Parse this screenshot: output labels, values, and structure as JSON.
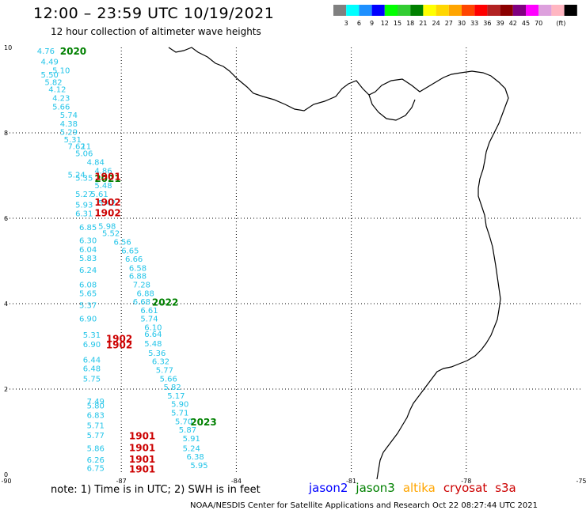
{
  "header": {
    "title": "12:00 – 23:59 UTC 10/19/2021",
    "subtitle": "12 hour collection of altimeter wave heights"
  },
  "colorbar": {
    "colors": [
      "#808080",
      "#00ffff",
      "#1e90ff",
      "#0000ff",
      "#00ff00",
      "#32cd32",
      "#008000",
      "#ffff00",
      "#ffd700",
      "#ffa500",
      "#ff4500",
      "#ff0000",
      "#b22222",
      "#8b0000",
      "#800080",
      "#ff00ff",
      "#dda0dd",
      "#ffb6c1",
      "#000000"
    ],
    "labels": [
      "3",
      "6",
      "9",
      "12",
      "15",
      "18",
      "21",
      "24",
      "27",
      "30",
      "33",
      "36",
      "39",
      "42",
      "45",
      "70",
      "(ft)"
    ]
  },
  "map": {
    "lon_range": [
      -90,
      -75
    ],
    "lat_range": [
      0,
      10
    ],
    "lon_ticks": [
      "-90",
      "-87",
      "-84",
      "-81",
      "-78",
      "-75"
    ],
    "lat_ticks": [
      "0",
      "2",
      "4",
      "6",
      "8",
      "10"
    ],
    "tick_label_color": "#000000"
  },
  "track_labels": [
    {
      "text": "2020",
      "lon": -88.6,
      "lat": 9.83,
      "color": "#008000"
    },
    {
      "text": "2021",
      "lon": -87.7,
      "lat": 6.85,
      "color": "#008000"
    },
    {
      "text": "1901",
      "lon": -87.7,
      "lat": 6.9,
      "color": "#cc0000"
    },
    {
      "text": "1902",
      "lon": -87.7,
      "lat": 6.3,
      "color": "#cc0000"
    },
    {
      "text": "1902",
      "lon": -87.7,
      "lat": 6.05,
      "color": "#cc0000"
    },
    {
      "text": "2022",
      "lon": -86.2,
      "lat": 3.95,
      "color": "#008000"
    },
    {
      "text": "1902",
      "lon": -87.4,
      "lat": 3.1,
      "color": "#cc0000"
    },
    {
      "text": "1902",
      "lon": -87.4,
      "lat": 2.95,
      "color": "#cc0000"
    },
    {
      "text": "2023",
      "lon": -85.2,
      "lat": 1.15,
      "color": "#008000"
    },
    {
      "text": "1901",
      "lon": -86.8,
      "lat": 0.82,
      "color": "#cc0000"
    },
    {
      "text": "1901",
      "lon": -86.8,
      "lat": 0.55,
      "color": "#cc0000"
    },
    {
      "text": "1901",
      "lon": -86.8,
      "lat": 0.28,
      "color": "#cc0000"
    },
    {
      "text": "1901",
      "lon": -86.8,
      "lat": 0.05,
      "color": "#cc0000"
    }
  ],
  "swh_points": [
    {
      "v": "4.76",
      "lon": -89.2,
      "lat": 9.85
    },
    {
      "v": "4.49",
      "lon": -89.1,
      "lat": 9.6
    },
    {
      "v": "5.10",
      "lon": -88.8,
      "lat": 9.4
    },
    {
      "v": "5.50",
      "lon": -89.1,
      "lat": 9.3
    },
    {
      "v": "5.82",
      "lon": -89.0,
      "lat": 9.12
    },
    {
      "v": "4.12",
      "lon": -88.9,
      "lat": 8.95
    },
    {
      "v": "4.23",
      "lon": -88.8,
      "lat": 8.75
    },
    {
      "v": "5.66",
      "lon": -88.8,
      "lat": 8.55
    },
    {
      "v": "5.74",
      "lon": -88.6,
      "lat": 8.35
    },
    {
      "v": "4.38",
      "lon": -88.6,
      "lat": 8.15
    },
    {
      "v": "5.29",
      "lon": -88.6,
      "lat": 7.95
    },
    {
      "v": "5.31",
      "lon": -88.5,
      "lat": 7.78
    },
    {
      "v": "7.62",
      "lon": -88.4,
      "lat": 7.62
    },
    {
      "v": "11",
      "lon": -88.05,
      "lat": 7.62
    },
    {
      "v": "5.06",
      "lon": -88.2,
      "lat": 7.45
    },
    {
      "v": "4.84",
      "lon": -87.9,
      "lat": 7.25
    },
    {
      "v": "4.86",
      "lon": -87.7,
      "lat": 7.05
    },
    {
      "v": "5.24",
      "lon": -88.4,
      "lat": 6.95
    },
    {
      "v": "5.35",
      "lon": -88.2,
      "lat": 6.88
    },
    {
      "v": "5.48",
      "lon": -87.7,
      "lat": 6.7
    },
    {
      "v": "5.27",
      "lon": -88.2,
      "lat": 6.5
    },
    {
      "v": "5.61",
      "lon": -87.8,
      "lat": 6.5
    },
    {
      "v": "5.42",
      "lon": -87.6,
      "lat": 6.3
    },
    {
      "v": "5.93",
      "lon": -88.2,
      "lat": 6.25
    },
    {
      "v": "6.31",
      "lon": -88.2,
      "lat": 6.05
    },
    {
      "v": "5.98",
      "lon": -87.6,
      "lat": 5.75
    },
    {
      "v": "6.85",
      "lon": -88.1,
      "lat": 5.72
    },
    {
      "v": "5.52",
      "lon": -87.5,
      "lat": 5.58
    },
    {
      "v": "6.30",
      "lon": -88.1,
      "lat": 5.42
    },
    {
      "v": "6.56",
      "lon": -87.2,
      "lat": 5.38
    },
    {
      "v": "6.04",
      "lon": -88.1,
      "lat": 5.2
    },
    {
      "v": "6.65",
      "lon": -87.0,
      "lat": 5.18
    },
    {
      "v": "5.83",
      "lon": -88.1,
      "lat": 5.0
    },
    {
      "v": "6.66",
      "lon": -86.9,
      "lat": 4.98
    },
    {
      "v": "6.24",
      "lon": -88.1,
      "lat": 4.72
    },
    {
      "v": "6.58",
      "lon": -86.8,
      "lat": 4.77
    },
    {
      "v": "6.88",
      "lon": -86.8,
      "lat": 4.58
    },
    {
      "v": "6.08",
      "lon": -88.1,
      "lat": 4.38
    },
    {
      "v": "7.28",
      "lon": -86.7,
      "lat": 4.38
    },
    {
      "v": "5.65",
      "lon": -88.1,
      "lat": 4.18
    },
    {
      "v": "6.88",
      "lon": -86.6,
      "lat": 4.18
    },
    {
      "v": "6.68",
      "lon": -86.7,
      "lat": 3.98
    },
    {
      "v": "5.37",
      "lon": -88.1,
      "lat": 3.9
    },
    {
      "v": "6.61",
      "lon": -86.5,
      "lat": 3.78
    },
    {
      "v": "6.90",
      "lon": -88.1,
      "lat": 3.58
    },
    {
      "v": "5.74",
      "lon": -86.5,
      "lat": 3.58
    },
    {
      "v": "6.10",
      "lon": -86.4,
      "lat": 3.38
    },
    {
      "v": "5.31",
      "lon": -88.0,
      "lat": 3.2
    },
    {
      "v": "6.64",
      "lon": -86.4,
      "lat": 3.22
    },
    {
      "v": "6.90",
      "lon": -88.0,
      "lat": 2.98
    },
    {
      "v": "5.48",
      "lon": -86.4,
      "lat": 3.0
    },
    {
      "v": "5.36",
      "lon": -86.3,
      "lat": 2.78
    },
    {
      "v": "6.32",
      "lon": -86.2,
      "lat": 2.58
    },
    {
      "v": "6.44",
      "lon": -88.0,
      "lat": 2.62
    },
    {
      "v": "6.48",
      "lon": -88.0,
      "lat": 2.42
    },
    {
      "v": "5.77",
      "lon": -86.1,
      "lat": 2.38
    },
    {
      "v": "5.66",
      "lon": -86.0,
      "lat": 2.18
    },
    {
      "v": "5.75",
      "lon": -88.0,
      "lat": 2.18
    },
    {
      "v": "5.82",
      "lon": -85.9,
      "lat": 1.98
    },
    {
      "v": "5.17",
      "lon": -85.8,
      "lat": 1.78
    },
    {
      "v": "7.49",
      "lon": -87.9,
      "lat": 1.65
    },
    {
      "v": "5.80",
      "lon": -87.9,
      "lat": 1.55
    },
    {
      "v": "5.90",
      "lon": -85.7,
      "lat": 1.58
    },
    {
      "v": "5.71",
      "lon": -85.7,
      "lat": 1.38
    },
    {
      "v": "6.83",
      "lon": -87.9,
      "lat": 1.32
    },
    {
      "v": "5.70",
      "lon": -85.6,
      "lat": 1.18
    },
    {
      "v": "5.71",
      "lon": -87.9,
      "lat": 1.08
    },
    {
      "v": "5.87",
      "lon": -85.5,
      "lat": 0.98
    },
    {
      "v": "5.77",
      "lon": -87.9,
      "lat": 0.85
    },
    {
      "v": "5.91",
      "lon": -85.4,
      "lat": 0.78
    },
    {
      "v": "5.86",
      "lon": -87.9,
      "lat": 0.55
    },
    {
      "v": "5.24",
      "lon": -85.4,
      "lat": 0.55
    },
    {
      "v": "6.38",
      "lon": -85.3,
      "lat": 0.35
    },
    {
      "v": "6.26",
      "lon": -87.9,
      "lat": 0.28
    },
    {
      "v": "5.95",
      "lon": -85.2,
      "lat": 0.15
    },
    {
      "v": "6.75",
      "lon": -87.9,
      "lat": 0.08
    }
  ],
  "swh_color": "#22c4e8",
  "footer": {
    "note": "note:  1) Time is in UTC;  2) SWH is in feet",
    "credit": "NOAA/NESDIS Center for Satellite Applications and Research      Oct 22 08:27:44 UTC 2021"
  },
  "legend": [
    {
      "label": "jason2",
      "color": "#0000ff"
    },
    {
      "label": "jason3",
      "color": "#008000"
    },
    {
      "label": "altika",
      "color": "#ffa500"
    },
    {
      "label": "cryosat",
      "color": "#cc0000"
    },
    {
      "label": "s3a",
      "color": "#cc0000"
    }
  ]
}
